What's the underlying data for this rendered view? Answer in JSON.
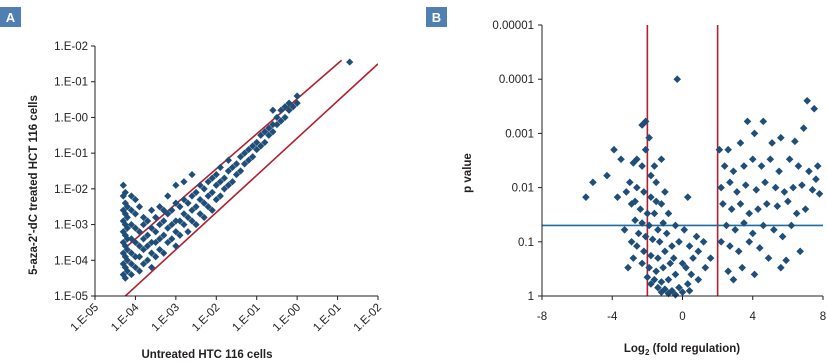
{
  "chart_data": [
    {
      "panel": "A",
      "type": "scatter",
      "xlabel": "Untreated HTC 116 cells",
      "ylabel": "5-aza-2'-dC treated HCT 116 cells",
      "scale": "log",
      "x_ticks": [
        "1.E-05",
        "1.E-04",
        "1.E-03",
        "1.E-02",
        "1.E-01",
        "1.E-00",
        "1.E-01",
        "1.E-02"
      ],
      "y_ticks": [
        "1.E-02",
        "1.E-01",
        "1.E-00",
        "1.E-01",
        "1.E-02",
        "1.E-03",
        "1.E-04",
        "1.E-05"
      ],
      "xlim_log10": [
        -5,
        2
      ],
      "ylim_log10": [
        -5,
        2
      ],
      "reference_lines": [
        {
          "description": "upper fold-change boundary",
          "x_log10": [
            -4.2,
            1.1
          ],
          "y_log10": [
            -3.6,
            1.6
          ]
        },
        {
          "description": "lower fold-change boundary",
          "x_log10": [
            -4.25,
            2
          ],
          "y_log10": [
            -5,
            1.5
          ]
        }
      ],
      "points_log10": [
        [
          -4.3,
          -4.4
        ],
        [
          -4.3,
          -4.1
        ],
        [
          -4.3,
          -3.8
        ],
        [
          -4.3,
          -3.5
        ],
        [
          -4.3,
          -3.2
        ],
        [
          -4.3,
          -2.9
        ],
        [
          -4.3,
          -2.6
        ],
        [
          -4.3,
          -2.2
        ],
        [
          -4.3,
          -1.9
        ],
        [
          -4.25,
          -4.5
        ],
        [
          -4.25,
          -4.2
        ],
        [
          -4.25,
          -3.9
        ],
        [
          -4.25,
          -3.6
        ],
        [
          -4.25,
          -3.3
        ],
        [
          -4.25,
          -3.0
        ],
        [
          -4.25,
          -2.7
        ],
        [
          -4.25,
          -2.4
        ],
        [
          -4.25,
          -2.1
        ],
        [
          -4.2,
          -4.3
        ],
        [
          -4.2,
          -4.0
        ],
        [
          -4.2,
          -3.7
        ],
        [
          -4.2,
          -3.4
        ],
        [
          -4.2,
          -3.1
        ],
        [
          -4.2,
          -2.8
        ],
        [
          -4.2,
          -2.5
        ],
        [
          -4.1,
          -4.4
        ],
        [
          -4.1,
          -4.1
        ],
        [
          -4.1,
          -3.8
        ],
        [
          -4.1,
          -3.4
        ],
        [
          -4.1,
          -3.0
        ],
        [
          -4.1,
          -2.6
        ],
        [
          -4.1,
          -2.2
        ],
        [
          -4.0,
          -4.2
        ],
        [
          -4.0,
          -3.9
        ],
        [
          -4.0,
          -3.5
        ],
        [
          -4.0,
          -3.1
        ],
        [
          -4.0,
          -2.7
        ],
        [
          -4.0,
          -2.3
        ],
        [
          -3.9,
          -4.3
        ],
        [
          -3.9,
          -3.9
        ],
        [
          -3.9,
          -3.6
        ],
        [
          -3.9,
          -3.2
        ],
        [
          -3.9,
          -2.5
        ],
        [
          -3.8,
          -4.1
        ],
        [
          -3.8,
          -3.7
        ],
        [
          -3.8,
          -3.4
        ],
        [
          -3.8,
          -3.0
        ],
        [
          -3.8,
          -2.8
        ],
        [
          -3.7,
          -4.0
        ],
        [
          -3.7,
          -3.6
        ],
        [
          -3.7,
          -3.3
        ],
        [
          -3.7,
          -2.9
        ],
        [
          -3.6,
          -4.2
        ],
        [
          -3.6,
          -3.8
        ],
        [
          -3.6,
          -3.5
        ],
        [
          -3.6,
          -3.1
        ],
        [
          -3.6,
          -2.6
        ],
        [
          -3.5,
          -3.9
        ],
        [
          -3.5,
          -3.5
        ],
        [
          -3.5,
          -3.2
        ],
        [
          -3.5,
          -2.8
        ],
        [
          -3.4,
          -3.7
        ],
        [
          -3.4,
          -3.4
        ],
        [
          -3.4,
          -3.0
        ],
        [
          -3.4,
          -2.5
        ],
        [
          -3.3,
          -3.8
        ],
        [
          -3.3,
          -3.3
        ],
        [
          -3.3,
          -2.9
        ],
        [
          -3.3,
          -2.6
        ],
        [
          -3.2,
          -3.5
        ],
        [
          -3.2,
          -3.1
        ],
        [
          -3.2,
          -2.7
        ],
        [
          -3.2,
          -2.2
        ],
        [
          -3.1,
          -3.4
        ],
        [
          -3.1,
          -3.0
        ],
        [
          -3.1,
          -2.6
        ],
        [
          -3.0,
          -3.6
        ],
        [
          -3.0,
          -3.2
        ],
        [
          -3.0,
          -2.9
        ],
        [
          -3.0,
          -2.4
        ],
        [
          -3.0,
          -1.9
        ],
        [
          -2.9,
          -3.3
        ],
        [
          -2.9,
          -2.9
        ],
        [
          -2.9,
          -2.5
        ],
        [
          -2.8,
          -3.0
        ],
        [
          -2.8,
          -2.7
        ],
        [
          -2.8,
          -2.3
        ],
        [
          -2.8,
          -1.8
        ],
        [
          -2.7,
          -3.2
        ],
        [
          -2.7,
          -2.8
        ],
        [
          -2.7,
          -2.4
        ],
        [
          -2.6,
          -2.9
        ],
        [
          -2.6,
          -2.6
        ],
        [
          -2.6,
          -2.2
        ],
        [
          -2.6,
          -1.6
        ],
        [
          -2.5,
          -3.0
        ],
        [
          -2.5,
          -2.5
        ],
        [
          -2.5,
          -2.1
        ],
        [
          -2.4,
          -2.7
        ],
        [
          -2.4,
          -2.3
        ],
        [
          -2.4,
          -1.9
        ],
        [
          -2.3,
          -2.8
        ],
        [
          -2.3,
          -2.4
        ],
        [
          -2.3,
          -2.0
        ],
        [
          -2.2,
          -2.5
        ],
        [
          -2.2,
          -2.2
        ],
        [
          -2.2,
          -1.8
        ],
        [
          -2.1,
          -2.6
        ],
        [
          -2.1,
          -2.1
        ],
        [
          -2.1,
          -1.7
        ],
        [
          -2.0,
          -2.3
        ],
        [
          -2.0,
          -1.9
        ],
        [
          -2.0,
          -1.6
        ],
        [
          -1.9,
          -2.2
        ],
        [
          -1.9,
          -1.8
        ],
        [
          -1.9,
          -1.4
        ],
        [
          -1.8,
          -2.0
        ],
        [
          -1.8,
          -1.7
        ],
        [
          -1.7,
          -1.9
        ],
        [
          -1.7,
          -1.5
        ],
        [
          -1.7,
          -1.2
        ],
        [
          -1.6,
          -1.8
        ],
        [
          -1.6,
          -1.4
        ],
        [
          -1.5,
          -1.6
        ],
        [
          -1.5,
          -1.3
        ],
        [
          -1.4,
          -1.5
        ],
        [
          -1.4,
          -1.1
        ],
        [
          -1.3,
          -1.3
        ],
        [
          -1.3,
          -1.0
        ],
        [
          -1.2,
          -1.2
        ],
        [
          -1.2,
          -0.9
        ],
        [
          -1.1,
          -1.1
        ],
        [
          -1.1,
          -0.8
        ],
        [
          -1.0,
          -0.9
        ],
        [
          -1.0,
          -0.7
        ],
        [
          -0.9,
          -0.8
        ],
        [
          -0.9,
          -0.5
        ],
        [
          -0.8,
          -0.7
        ],
        [
          -0.8,
          -0.4
        ],
        [
          -0.7,
          -0.5
        ],
        [
          -0.7,
          -0.3
        ],
        [
          -0.6,
          -0.4
        ],
        [
          -0.6,
          -0.2
        ],
        [
          -0.6,
          0.2
        ],
        [
          -0.5,
          -0.2
        ],
        [
          -0.5,
          0.0
        ],
        [
          -0.4,
          -0.1
        ],
        [
          -0.4,
          0.2
        ],
        [
          -0.3,
          0.0
        ],
        [
          -0.3,
          0.3
        ],
        [
          -0.2,
          0.2
        ],
        [
          -0.2,
          0.4
        ],
        [
          -0.1,
          0.3
        ],
        [
          0.0,
          0.4
        ],
        [
          0.0,
          0.6
        ],
        [
          1.3,
          1.55
        ]
      ]
    },
    {
      "panel": "B",
      "type": "scatter",
      "xlabel_main": "Log",
      "xlabel_sub": "2",
      "xlabel_rest": " (fold regulation)",
      "ylabel": "p value",
      "x_ticks": [
        "-8",
        "-4",
        "0",
        "4",
        "8"
      ],
      "y_ticks": [
        "0.00001",
        "0.0001",
        "0.001",
        "0.01",
        "0.1",
        "1"
      ],
      "xlim": [
        -8,
        8
      ],
      "y_scale": "log (reversed)",
      "ylim_log10": [
        -5,
        0
      ],
      "vertical_lines_x": [
        -2,
        2
      ],
      "horizontal_line_y": 0.05,
      "points": [
        [
          -0.3,
          0.0001
        ],
        [
          -2.3,
          0.0007
        ],
        [
          -2.1,
          0.0006
        ],
        [
          -1.9,
          0.0012
        ],
        [
          -3.5,
          0.003
        ],
        [
          -2.8,
          0.0035
        ],
        [
          -2.1,
          0.002
        ],
        [
          -2.3,
          0.004
        ],
        [
          -1.6,
          0.004
        ],
        [
          -1.8,
          0.006
        ],
        [
          -1.2,
          0.003
        ],
        [
          -3.7,
          0.015
        ],
        [
          -3.9,
          0.002
        ],
        [
          -3,
          0.008
        ],
        [
          -2.6,
          0.01
        ],
        [
          -2.2,
          0.012
        ],
        [
          -1.8,
          0.015
        ],
        [
          -1.5,
          0.018
        ],
        [
          -2.9,
          0.02
        ],
        [
          -2.4,
          0.025
        ],
        [
          -2,
          0.03
        ],
        [
          -1.6,
          0.03
        ],
        [
          -1.2,
          0.02
        ],
        [
          -2.7,
          0.04
        ],
        [
          -2.3,
          0.045
        ],
        [
          -1.9,
          0.05
        ],
        [
          -1.4,
          0.06
        ],
        [
          -1.1,
          0.045
        ],
        [
          -2.5,
          0.07
        ],
        [
          -2.1,
          0.08
        ],
        [
          -1.7,
          0.09
        ],
        [
          -1.3,
          0.1
        ],
        [
          -0.9,
          0.07
        ],
        [
          -2.6,
          0.12
        ],
        [
          -2.2,
          0.15
        ],
        [
          -1.8,
          0.18
        ],
        [
          -1.4,
          0.2
        ],
        [
          -1,
          0.15
        ],
        [
          -0.6,
          0.12
        ],
        [
          -2.3,
          0.25
        ],
        [
          -1.9,
          0.3
        ],
        [
          -1.5,
          0.35
        ],
        [
          -1.1,
          0.3
        ],
        [
          -0.7,
          0.25
        ],
        [
          -2,
          0.45
        ],
        [
          -1.6,
          0.5
        ],
        [
          -1.2,
          0.55
        ],
        [
          -0.8,
          0.5
        ],
        [
          -0.4,
          0.4
        ],
        [
          -1.8,
          0.6
        ],
        [
          -1.4,
          0.7
        ],
        [
          -1,
          0.75
        ],
        [
          -0.6,
          0.8
        ],
        [
          -0.2,
          0.7
        ],
        [
          -1.2,
          0.85
        ],
        [
          -0.8,
          0.9
        ],
        [
          -0.4,
          0.95
        ],
        [
          0,
          0.85
        ],
        [
          0.3,
          0.6
        ],
        [
          0.5,
          0.4
        ],
        [
          0.2,
          0.3
        ],
        [
          0.6,
          0.2
        ],
        [
          0.9,
          0.15
        ],
        [
          1.2,
          0.1
        ],
        [
          -0.5,
          0.2
        ],
        [
          0,
          0.25
        ],
        [
          0.4,
          0.12
        ],
        [
          -0.2,
          0.1
        ],
        [
          0.8,
          0.08
        ],
        [
          1.3,
          0.3
        ],
        [
          1.6,
          0.2
        ],
        [
          0.9,
          0.5
        ],
        [
          0.4,
          0.8
        ],
        [
          -1.5,
          0.008
        ],
        [
          -1.0,
          0.012
        ],
        [
          -0.8,
          0.03
        ],
        [
          -0.4,
          0.05
        ],
        [
          0.1,
          0.06
        ],
        [
          0.3,
          0.015
        ],
        [
          -2.6,
          0.003
        ],
        [
          2.1,
          0.002
        ],
        [
          2.6,
          0.002
        ],
        [
          3.3,
          0.0015
        ],
        [
          3.7,
          0.0006
        ],
        [
          4.1,
          0.001
        ],
        [
          4.6,
          0.0006
        ],
        [
          5.1,
          0.0015
        ],
        [
          5.6,
          0.0012
        ],
        [
          6.4,
          0.0014
        ],
        [
          7.1,
          0.00025
        ],
        [
          7.5,
          0.00035
        ],
        [
          6.9,
          0.0008
        ],
        [
          2.4,
          0.004
        ],
        [
          2.9,
          0.005
        ],
        [
          3.5,
          0.004
        ],
        [
          4.0,
          0.003
        ],
        [
          4.5,
          0.004
        ],
        [
          5.0,
          0.003
        ],
        [
          5.5,
          0.005
        ],
        [
          6.1,
          0.003
        ],
        [
          6.6,
          0.004
        ],
        [
          7.2,
          0.005
        ],
        [
          7.7,
          0.004
        ],
        [
          2.2,
          0.01
        ],
        [
          2.7,
          0.008
        ],
        [
          3.1,
          0.012
        ],
        [
          3.6,
          0.009
        ],
        [
          4.2,
          0.011
        ],
        [
          4.7,
          0.008
        ],
        [
          5.3,
          0.01
        ],
        [
          5.8,
          0.012
        ],
        [
          6.3,
          0.01
        ],
        [
          6.8,
          0.009
        ],
        [
          7.4,
          0.011
        ],
        [
          7.8,
          0.013
        ],
        [
          2.3,
          0.02
        ],
        [
          2.8,
          0.025
        ],
        [
          3.3,
          0.02
        ],
        [
          3.8,
          0.03
        ],
        [
          4.3,
          0.025
        ],
        [
          4.8,
          0.02
        ],
        [
          5.4,
          0.022
        ],
        [
          6.0,
          0.018
        ],
        [
          6.5,
          0.03
        ],
        [
          7.0,
          0.025
        ],
        [
          2.5,
          0.05
        ],
        [
          3.0,
          0.06
        ],
        [
          3.5,
          0.045
        ],
        [
          4.0,
          0.07
        ],
        [
          4.6,
          0.05
        ],
        [
          5.2,
          0.06
        ],
        [
          5.7,
          0.08
        ],
        [
          6.2,
          0.05
        ],
        [
          2.2,
          0.1
        ],
        [
          2.7,
          0.12
        ],
        [
          3.2,
          0.15
        ],
        [
          3.8,
          0.1
        ],
        [
          4.4,
          0.13
        ],
        [
          4.9,
          0.2
        ],
        [
          5.6,
          0.3
        ],
        [
          6.7,
          0.15
        ],
        [
          2.6,
          0.35
        ],
        [
          3.4,
          0.3
        ],
        [
          4.1,
          0.4
        ],
        [
          2.9,
          0.5
        ],
        [
          5.9,
          0.22
        ],
        [
          7.6,
          0.007
        ],
        [
          -5.5,
          0.015
        ],
        [
          -5.1,
          0.008
        ],
        [
          -4.3,
          0.006
        ],
        [
          -3.2,
          0.012
        ],
        [
          -2.7,
          0.018
        ],
        [
          -3.3,
          0.06
        ],
        [
          -2.9,
          0.1
        ],
        [
          -3.1,
          0.3
        ],
        [
          -2.8,
          0.2
        ]
      ]
    }
  ],
  "panels": {
    "a": {
      "label": "A"
    },
    "b": {
      "label": "B"
    }
  },
  "colors": {
    "marker": "#1f4e79",
    "reference_line": "#b22030",
    "horizontal_line": "#1f6e9e",
    "panel_label_bg": "#4f7fb3",
    "axis": "#231f20"
  }
}
